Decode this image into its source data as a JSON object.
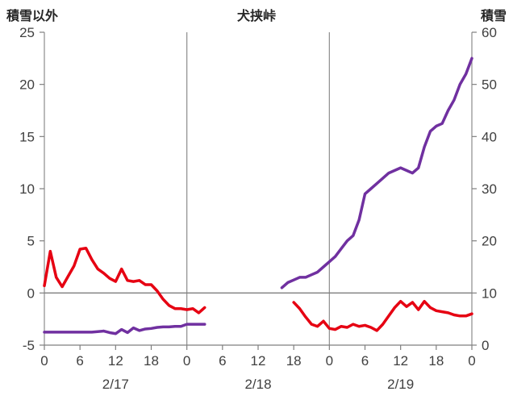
{
  "chart_data": {
    "type": "line",
    "title": "犬挟峠",
    "x_unit": "hours since 2/17 00:00",
    "x_range": [
      0,
      72
    ],
    "left_axis": {
      "title": "積雪以外",
      "min": -5,
      "max": 25,
      "ticks": [
        25,
        20,
        15,
        10,
        5,
        0,
        -5
      ]
    },
    "right_axis": {
      "title": "積雪",
      "min": 0,
      "max": 60,
      "ticks": [
        60,
        50,
        40,
        30,
        20,
        10,
        0
      ]
    },
    "x_ticks": {
      "hours": [
        0,
        6,
        12,
        18,
        24,
        30,
        36,
        42,
        48,
        54,
        60,
        66,
        72
      ],
      "labels": [
        "0",
        "6",
        "12",
        "18",
        "0",
        "6",
        "12",
        "18",
        "0",
        "6",
        "12",
        "18",
        "0"
      ]
    },
    "date_labels": [
      {
        "label": "2/17",
        "center_hour": 12
      },
      {
        "label": "2/18",
        "center_hour": 36
      },
      {
        "label": "2/19",
        "center_hour": 60
      }
    ],
    "gridline_hours": [
      0,
      24,
      48,
      72
    ],
    "grid": "day boundaries vertical only, horizontal line at left-axis 0",
    "legend": "none",
    "colors": {
      "grid": "#8c8c8c",
      "axis": "#7f7f7f",
      "text": "#404040"
    },
    "series": [
      {
        "id": "non-snow",
        "name": "積雪以外",
        "axis": "left",
        "color": "#e60012",
        "segments": [
          [
            [
              0,
              0.7
            ],
            [
              1,
              4.0
            ],
            [
              2,
              1.5
            ],
            [
              3,
              0.6
            ],
            [
              4,
              1.6
            ],
            [
              5,
              2.6
            ],
            [
              6,
              4.2
            ],
            [
              7,
              4.3
            ],
            [
              8,
              3.2
            ],
            [
              9,
              2.3
            ],
            [
              10,
              1.9
            ],
            [
              11,
              1.4
            ],
            [
              12,
              1.1
            ],
            [
              13,
              2.3
            ],
            [
              14,
              1.2
            ],
            [
              15,
              1.1
            ],
            [
              16,
              1.2
            ],
            [
              17,
              0.8
            ],
            [
              18,
              0.8
            ],
            [
              19,
              0.2
            ],
            [
              20,
              -0.6
            ],
            [
              21,
              -1.2
            ],
            [
              22,
              -1.5
            ],
            [
              23,
              -1.5
            ],
            [
              24,
              -1.6
            ],
            [
              25,
              -1.5
            ],
            [
              26,
              -1.9
            ],
            [
              27,
              -1.4
            ]
          ],
          [
            [
              42,
              -0.9
            ],
            [
              43,
              -1.5
            ],
            [
              44,
              -2.3
            ],
            [
              45,
              -3.0
            ],
            [
              46,
              -3.2
            ],
            [
              47,
              -2.7
            ],
            [
              48,
              -3.4
            ],
            [
              49,
              -3.5
            ],
            [
              50,
              -3.2
            ],
            [
              51,
              -3.3
            ],
            [
              52,
              -3.0
            ],
            [
              53,
              -3.2
            ],
            [
              54,
              -3.1
            ],
            [
              55,
              -3.3
            ],
            [
              56,
              -3.6
            ],
            [
              57,
              -3.0
            ],
            [
              58,
              -2.2
            ],
            [
              59,
              -1.4
            ],
            [
              60,
              -0.8
            ],
            [
              61,
              -1.3
            ],
            [
              62,
              -0.9
            ],
            [
              63,
              -1.6
            ],
            [
              64,
              -0.8
            ],
            [
              65,
              -1.4
            ],
            [
              66,
              -1.7
            ],
            [
              67,
              -1.8
            ],
            [
              68,
              -1.9
            ],
            [
              69,
              -2.1
            ],
            [
              70,
              -2.2
            ],
            [
              71,
              -2.2
            ],
            [
              72,
              -2.0
            ]
          ]
        ]
      },
      {
        "id": "snow-depth",
        "name": "積雪",
        "axis": "right",
        "color": "#7030a0",
        "segments": [
          [
            [
              0,
              2.5
            ],
            [
              2,
              2.5
            ],
            [
              4,
              2.5
            ],
            [
              6,
              2.5
            ],
            [
              8,
              2.5
            ],
            [
              10,
              2.7
            ],
            [
              11,
              2.4
            ],
            [
              12,
              2.2
            ],
            [
              13,
              3.0
            ],
            [
              14,
              2.4
            ],
            [
              15,
              3.3
            ],
            [
              16,
              2.8
            ],
            [
              17,
              3.1
            ],
            [
              18,
              3.2
            ],
            [
              19,
              3.4
            ],
            [
              20,
              3.5
            ],
            [
              21,
              3.5
            ],
            [
              22,
              3.6
            ],
            [
              23,
              3.6
            ],
            [
              24,
              4.0
            ],
            [
              25,
              4.0
            ],
            [
              26,
              4.0
            ],
            [
              27,
              4.0
            ]
          ],
          [
            [
              40,
              11
            ],
            [
              41,
              12
            ],
            [
              42,
              12.5
            ],
            [
              43,
              13
            ],
            [
              44,
              13
            ],
            [
              45,
              13.5
            ],
            [
              46,
              14
            ],
            [
              47,
              15
            ],
            [
              48,
              16
            ],
            [
              49,
              17
            ],
            [
              50,
              18.5
            ],
            [
              51,
              20
            ],
            [
              52,
              21
            ],
            [
              53,
              24
            ],
            [
              54,
              29
            ],
            [
              55,
              30
            ],
            [
              56,
              31
            ],
            [
              57,
              32
            ],
            [
              58,
              33
            ],
            [
              59,
              33.5
            ],
            [
              60,
              34
            ],
            [
              61,
              33.5
            ],
            [
              62,
              33
            ],
            [
              63,
              34
            ],
            [
              64,
              38
            ],
            [
              65,
              41
            ],
            [
              66,
              42
            ],
            [
              67,
              42.5
            ],
            [
              68,
              45
            ],
            [
              69,
              47
            ],
            [
              70,
              50
            ],
            [
              71,
              52
            ],
            [
              72,
              55
            ]
          ]
        ]
      }
    ]
  }
}
